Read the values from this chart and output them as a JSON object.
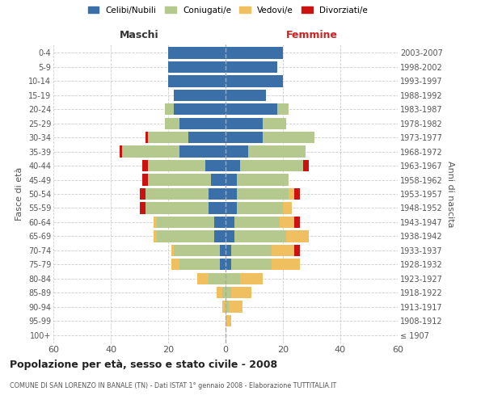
{
  "age_groups": [
    "100+",
    "95-99",
    "90-94",
    "85-89",
    "80-84",
    "75-79",
    "70-74",
    "65-69",
    "60-64",
    "55-59",
    "50-54",
    "45-49",
    "40-44",
    "35-39",
    "30-34",
    "25-29",
    "20-24",
    "15-19",
    "10-14",
    "5-9",
    "0-4"
  ],
  "birth_years": [
    "≤ 1907",
    "1908-1912",
    "1913-1917",
    "1918-1922",
    "1923-1927",
    "1928-1932",
    "1933-1937",
    "1938-1942",
    "1943-1947",
    "1948-1952",
    "1953-1957",
    "1958-1962",
    "1963-1967",
    "1968-1972",
    "1973-1977",
    "1978-1982",
    "1983-1987",
    "1988-1992",
    "1993-1997",
    "1998-2002",
    "2003-2007"
  ],
  "colors": {
    "celibi": "#3a6fa8",
    "coniugati": "#b5c98e",
    "vedovi": "#f0c060",
    "divorziati": "#cc1111"
  },
  "maschi": {
    "celibi": [
      0,
      0,
      0,
      0,
      0,
      2,
      2,
      4,
      4,
      6,
      6,
      5,
      7,
      16,
      13,
      16,
      18,
      18,
      20,
      20,
      20
    ],
    "coniugati": [
      0,
      0,
      0,
      1,
      6,
      14,
      16,
      20,
      20,
      22,
      22,
      22,
      20,
      20,
      14,
      5,
      3,
      0,
      0,
      0,
      0
    ],
    "vedovi": [
      0,
      0,
      1,
      2,
      4,
      3,
      1,
      1,
      1,
      0,
      0,
      0,
      0,
      0,
      0,
      0,
      0,
      0,
      0,
      0,
      0
    ],
    "divorziati": [
      0,
      0,
      0,
      0,
      0,
      0,
      0,
      0,
      0,
      2,
      2,
      2,
      2,
      1,
      1,
      0,
      0,
      0,
      0,
      0,
      0
    ]
  },
  "femmine": {
    "nubili": [
      0,
      0,
      0,
      0,
      0,
      2,
      2,
      3,
      3,
      4,
      4,
      4,
      5,
      8,
      13,
      13,
      18,
      14,
      20,
      18,
      20
    ],
    "coniugate": [
      0,
      0,
      1,
      2,
      5,
      14,
      14,
      18,
      16,
      16,
      18,
      18,
      22,
      20,
      18,
      8,
      4,
      0,
      0,
      0,
      0
    ],
    "vedove": [
      0,
      2,
      5,
      7,
      8,
      10,
      8,
      8,
      5,
      3,
      2,
      0,
      0,
      0,
      0,
      0,
      0,
      0,
      0,
      0,
      0
    ],
    "divorziate": [
      0,
      0,
      0,
      0,
      0,
      0,
      2,
      0,
      2,
      0,
      2,
      0,
      2,
      0,
      0,
      0,
      0,
      0,
      0,
      0,
      0
    ]
  },
  "title": "Popolazione per età, sesso e stato civile - 2008",
  "subtitle": "COMUNE DI SAN LORENZO IN BANALE (TN) - Dati ISTAT 1° gennaio 2008 - Elaborazione TUTTITALIA.IT",
  "xlabel_left": "Maschi",
  "xlabel_right": "Femmine",
  "ylabel_left": "Fasce di età",
  "ylabel_right": "Anni di nascita",
  "xlim": 60,
  "legend_labels": [
    "Celibi/Nubili",
    "Coniugati/e",
    "Vedovi/e",
    "Divorziati/e"
  ],
  "bg_color": "#ffffff",
  "grid_color": "#cccccc"
}
